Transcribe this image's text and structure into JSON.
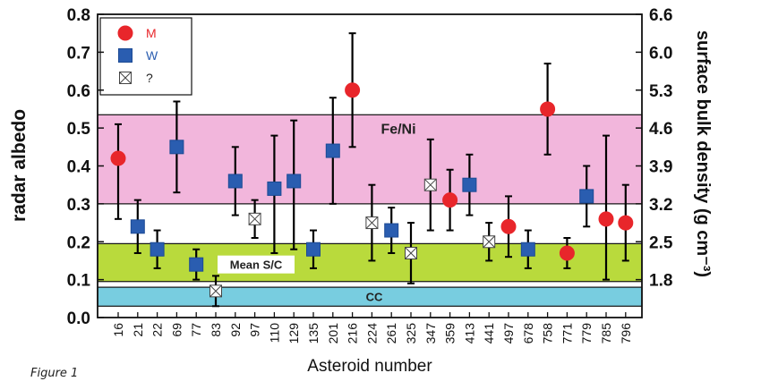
{
  "figure_caption": "Figure 1",
  "chart_data": {
    "type": "scatter",
    "xlabel": "Asteroid number",
    "ylabel": "radar albedo",
    "y2label": "surface bulk density (g cm⁻³)",
    "ylim": [
      0.0,
      0.8
    ],
    "yticks": [
      0.0,
      0.1,
      0.2,
      0.3,
      0.4,
      0.5,
      0.6,
      0.7,
      0.8
    ],
    "ytick_labels": [
      "0.0",
      "0.1",
      "0.2",
      "0.3",
      "0.4",
      "0.5",
      "0.6",
      "0.7",
      "0.8"
    ],
    "y2ticks": [
      {
        "label": "1.8",
        "albedo": 0.1
      },
      {
        "label": "2.5",
        "albedo": 0.2
      },
      {
        "label": "3.2",
        "albedo": 0.3
      },
      {
        "label": "3.9",
        "albedo": 0.4
      },
      {
        "label": "4.6",
        "albedo": 0.5
      },
      {
        "label": "5.3",
        "albedo": 0.6
      },
      {
        "label": "6.0",
        "albedo": 0.7
      },
      {
        "label": "6.6",
        "albedo": 0.8
      }
    ],
    "categories": [
      "16",
      "21",
      "22",
      "69",
      "77",
      "83",
      "92",
      "97",
      "110",
      "129",
      "135",
      "201",
      "216",
      "224",
      "261",
      "325",
      "347",
      "359",
      "413",
      "441",
      "497",
      "678",
      "758",
      "771",
      "779",
      "785",
      "796"
    ],
    "legend": {
      "placement": "top-left",
      "entries": [
        {
          "key": "M",
          "label": "M",
          "marker": "circle",
          "color": "#e8262b",
          "text_color": "#e8262b"
        },
        {
          "key": "W",
          "label": "W",
          "marker": "square",
          "color": "#2a5db0",
          "text_color": "#2a5db0"
        },
        {
          "key": "U",
          "label": "?",
          "marker": "crossbox",
          "color": "#ffffff",
          "text_color": "#222222"
        }
      ]
    },
    "regions": [
      {
        "label": "Fe/Ni",
        "y_range": [
          0.3,
          0.535
        ],
        "color": "#f2b6dc",
        "text_color": "#222222"
      },
      {
        "label": "Mean S/C",
        "y_range": [
          0.095,
          0.195
        ],
        "color": "#b9da3c",
        "text_color": "#222222"
      },
      {
        "label": "CC",
        "y_range": [
          0.03,
          0.08
        ],
        "color": "#78cde0",
        "text_color": "#222222"
      }
    ],
    "points": [
      {
        "asteroid": "16",
        "class": "M",
        "y": 0.42,
        "low": 0.26,
        "high": 0.51
      },
      {
        "asteroid": "21",
        "class": "W",
        "y": 0.24,
        "low": 0.17,
        "high": 0.31
      },
      {
        "asteroid": "22",
        "class": "W",
        "y": 0.18,
        "low": 0.13,
        "high": 0.23
      },
      {
        "asteroid": "69",
        "class": "W",
        "y": 0.45,
        "low": 0.33,
        "high": 0.57
      },
      {
        "asteroid": "77",
        "class": "W",
        "y": 0.14,
        "low": 0.1,
        "high": 0.18
      },
      {
        "asteroid": "83",
        "class": "U",
        "y": 0.07,
        "low": 0.03,
        "high": 0.11
      },
      {
        "asteroid": "92",
        "class": "W",
        "y": 0.36,
        "low": 0.27,
        "high": 0.45
      },
      {
        "asteroid": "97",
        "class": "U",
        "y": 0.26,
        "low": 0.21,
        "high": 0.31
      },
      {
        "asteroid": "110",
        "class": "W",
        "y": 0.34,
        "low": 0.17,
        "high": 0.48
      },
      {
        "asteroid": "129",
        "class": "W",
        "y": 0.36,
        "low": 0.18,
        "high": 0.52
      },
      {
        "asteroid": "135",
        "class": "W",
        "y": 0.18,
        "low": 0.13,
        "high": 0.23
      },
      {
        "asteroid": "201",
        "class": "W",
        "y": 0.44,
        "low": 0.3,
        "high": 0.58
      },
      {
        "asteroid": "216",
        "class": "M",
        "y": 0.6,
        "low": 0.45,
        "high": 0.75
      },
      {
        "asteroid": "224",
        "class": "U",
        "y": 0.25,
        "low": 0.15,
        "high": 0.35
      },
      {
        "asteroid": "261",
        "class": "W",
        "y": 0.23,
        "low": 0.17,
        "high": 0.29
      },
      {
        "asteroid": "325",
        "class": "U",
        "y": 0.17,
        "low": 0.09,
        "high": 0.25
      },
      {
        "asteroid": "347",
        "class": "U",
        "y": 0.35,
        "low": 0.23,
        "high": 0.47
      },
      {
        "asteroid": "359",
        "class": "M",
        "y": 0.31,
        "low": 0.23,
        "high": 0.39
      },
      {
        "asteroid": "413",
        "class": "W",
        "y": 0.35,
        "low": 0.27,
        "high": 0.43
      },
      {
        "asteroid": "441",
        "class": "U",
        "y": 0.2,
        "low": 0.15,
        "high": 0.25
      },
      {
        "asteroid": "497",
        "class": "M",
        "y": 0.24,
        "low": 0.16,
        "high": 0.32
      },
      {
        "asteroid": "678",
        "class": "W",
        "y": 0.18,
        "low": 0.13,
        "high": 0.23
      },
      {
        "asteroid": "758",
        "class": "M",
        "y": 0.55,
        "low": 0.43,
        "high": 0.67
      },
      {
        "asteroid": "771",
        "class": "M",
        "y": 0.17,
        "low": 0.13,
        "high": 0.21
      },
      {
        "asteroid": "779",
        "class": "W",
        "y": 0.32,
        "low": 0.24,
        "high": 0.4
      },
      {
        "asteroid": "785",
        "class": "M",
        "y": 0.26,
        "low": 0.1,
        "high": 0.48
      },
      {
        "asteroid": "796",
        "class": "M",
        "y": 0.25,
        "low": 0.15,
        "high": 0.35
      }
    ]
  }
}
